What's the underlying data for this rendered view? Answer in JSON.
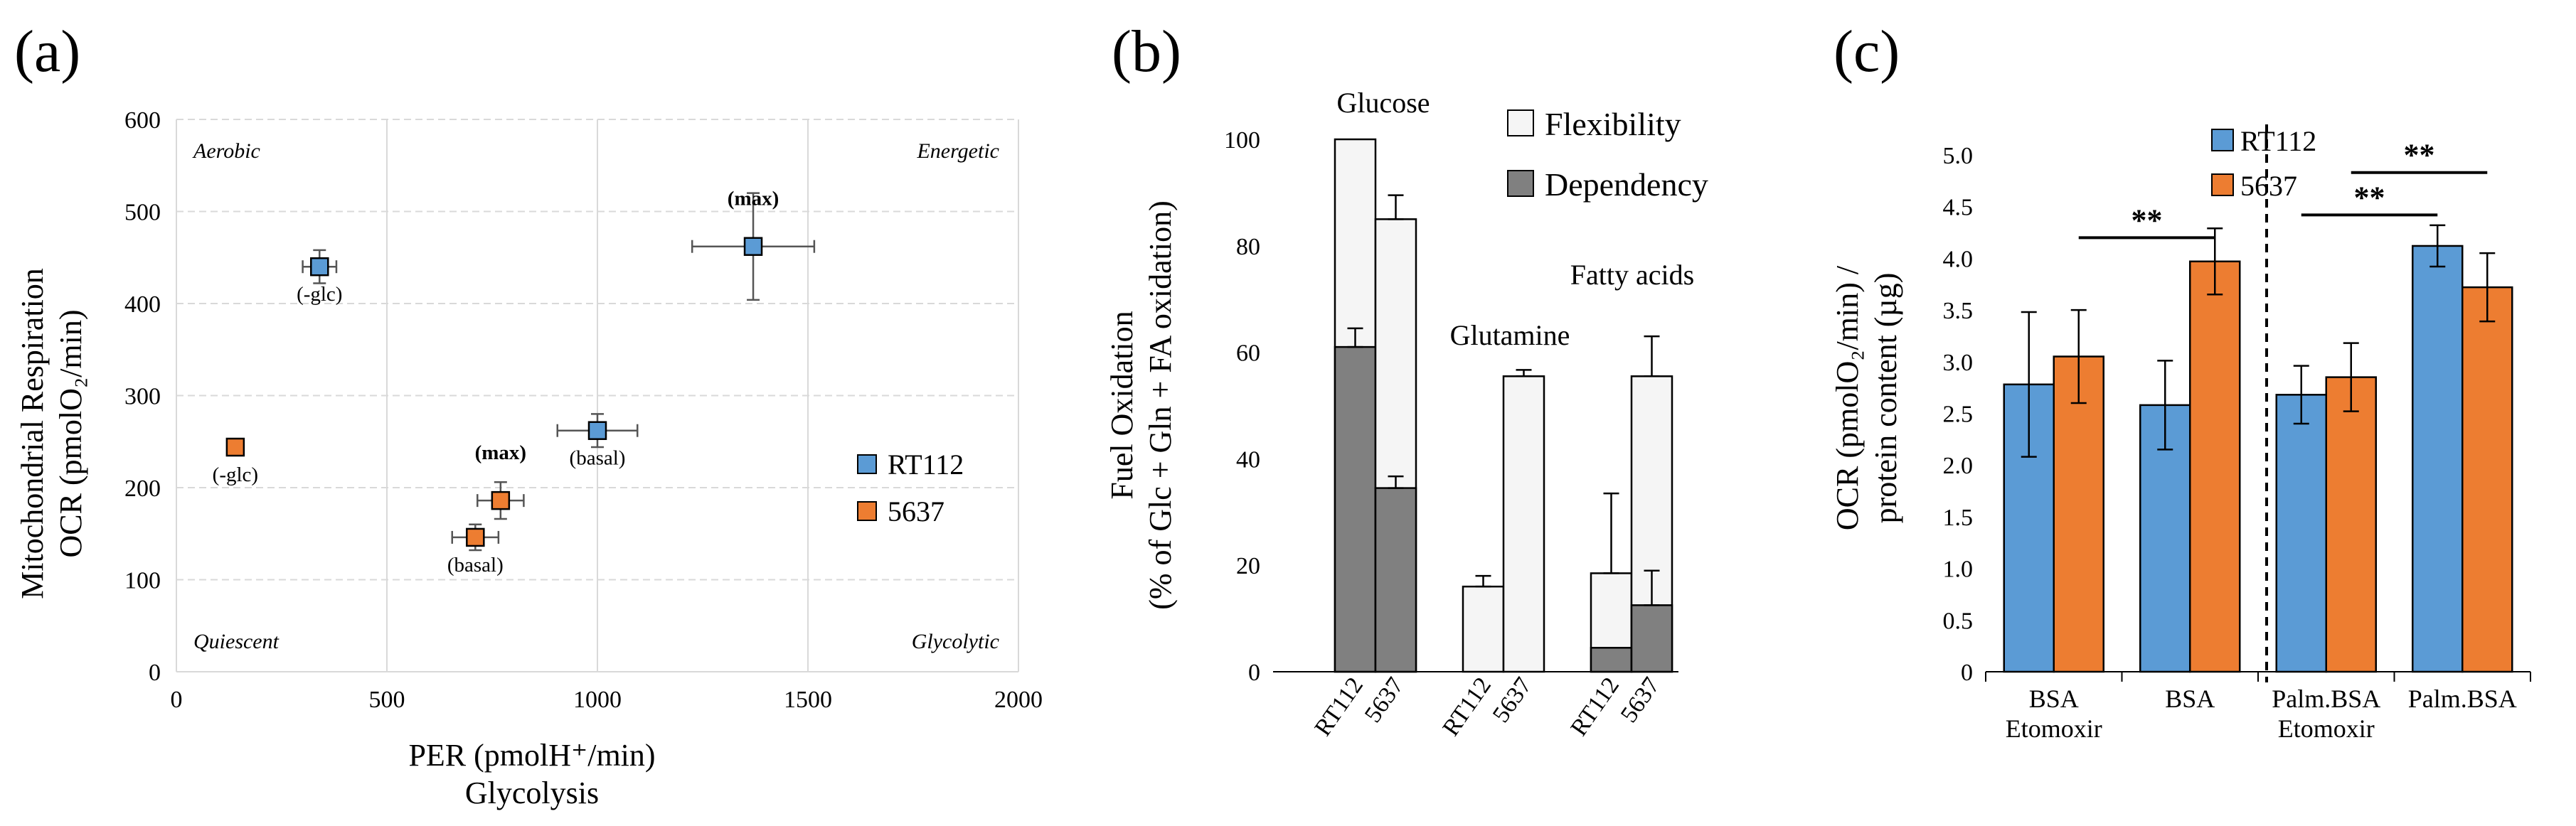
{
  "figure": {
    "colors": {
      "rt112": "#5b9bd5",
      "c5637": "#ed7d31",
      "dependency": "#808080",
      "flexibility": "#f5f5f5",
      "grid": "#d9d9d9"
    }
  },
  "chart_data": [
    {
      "panel": "(a)",
      "type": "scatter",
      "xlabel": "PER (pmolH⁺/min)",
      "xlabel2": "Glycolysis",
      "ylabel": "Mitochondrial Respiration",
      "ylabel2": "OCR (pmolO₂/min)",
      "xlim": [
        0,
        2000
      ],
      "ylim": [
        0,
        600
      ],
      "xticks": [
        "0",
        "500",
        "1000",
        "1500",
        "2000"
      ],
      "yticks": [
        "0",
        "100",
        "200",
        "300",
        "400",
        "500",
        "600"
      ],
      "grid": true,
      "quadrants": {
        "top_left": "Aerobic",
        "top_right": "Energetic",
        "bottom_left": "Quiescent",
        "bottom_right": "Glycolytic"
      },
      "series": [
        {
          "name": "RT112",
          "color": "#5b9bd5",
          "points": [
            {
              "label": "(-glc)",
              "bold": false,
              "x": 340,
              "y": 440,
              "xerr": 40,
              "yerr": 18
            },
            {
              "label": "(basal)",
              "bold": false,
              "x": 1000,
              "y": 262,
              "xerr": 95,
              "yerr": 18
            },
            {
              "label": "(max)",
              "bold": true,
              "x": 1370,
              "y": 462,
              "xerr": 145,
              "yerr": 58
            }
          ]
        },
        {
          "name": "5637",
          "color": "#ed7d31",
          "points": [
            {
              "label": "(-glc)",
              "bold": false,
              "x": 140,
              "y": 244,
              "xerr": 8,
              "yerr": 8
            },
            {
              "label": "(basal)",
              "bold": false,
              "x": 710,
              "y": 146,
              "xerr": 55,
              "yerr": 14
            },
            {
              "label": "(max)",
              "bold": true,
              "x": 770,
              "y": 186,
              "xerr": 55,
              "yerr": 20
            }
          ]
        }
      ],
      "legend": [
        "RT112",
        "5637"
      ]
    },
    {
      "panel": "(b)",
      "type": "bar",
      "stacked": true,
      "ylabel": "Fuel Oxidation",
      "ylabel2": "(% of Glc + Gln + FA oxidation)",
      "ylim": [
        0,
        100
      ],
      "yticks": [
        "0",
        "20",
        "40",
        "60",
        "80",
        "100"
      ],
      "groups": [
        "Glucose",
        "Glutamine",
        "Fatty acids"
      ],
      "categories": [
        "RT112",
        "5637",
        "RT112",
        "5637",
        "RT112",
        "5637"
      ],
      "series": [
        {
          "name": "Dependency",
          "color": "#808080",
          "values": [
            61,
            34.5,
            0,
            0,
            4.5,
            12.5
          ],
          "err": [
            3.5,
            2.2,
            0,
            0,
            0,
            6.5
          ]
        },
        {
          "name": "Flexibility",
          "color": "#f5f5f5",
          "totals": [
            100,
            85,
            16,
            55.5,
            18.5,
            55.5
          ],
          "err": [
            0,
            4.5,
            2,
            1.2,
            15,
            7.5
          ]
        }
      ],
      "legend": [
        "Flexibility",
        "Dependency"
      ]
    },
    {
      "panel": "(c)",
      "type": "bar",
      "ylabel": "OCR (pmolO₂/min) /",
      "ylabel2": "protein content (µg)",
      "ylim": [
        0,
        5
      ],
      "yticks": [
        "0",
        "0.5",
        "1.0",
        "1.5",
        "2.0",
        "2.5",
        "3.0",
        "3.5",
        "4.0",
        "4.5",
        "5.0"
      ],
      "categories": [
        [
          "BSA",
          "Etomoxir"
        ],
        [
          "BSA"
        ],
        [
          "Palm.BSA",
          "Etomoxir"
        ],
        [
          "Palm.BSA"
        ]
      ],
      "series": [
        {
          "name": "RT112",
          "color": "#5b9bd5",
          "values": [
            2.78,
            2.58,
            2.68,
            4.12
          ],
          "err": [
            0.7,
            0.43,
            0.28,
            0.2
          ]
        },
        {
          "name": "5637",
          "color": "#ed7d31",
          "values": [
            3.05,
            3.97,
            2.85,
            3.72
          ],
          "err": [
            0.45,
            0.32,
            0.33,
            0.33
          ]
        }
      ],
      "significance": [
        {
          "label": "**",
          "from": "BSA Etomoxir 5637",
          "to": "BSA 5637"
        },
        {
          "label": "**",
          "from": "Palm.BSA Etomoxir RT112",
          "to": "Palm.BSA RT112"
        },
        {
          "label": "**",
          "from": "Palm.BSA Etomoxir 5637",
          "to": "Palm.BSA 5637"
        }
      ],
      "legend": [
        "RT112",
        "5637"
      ]
    }
  ]
}
